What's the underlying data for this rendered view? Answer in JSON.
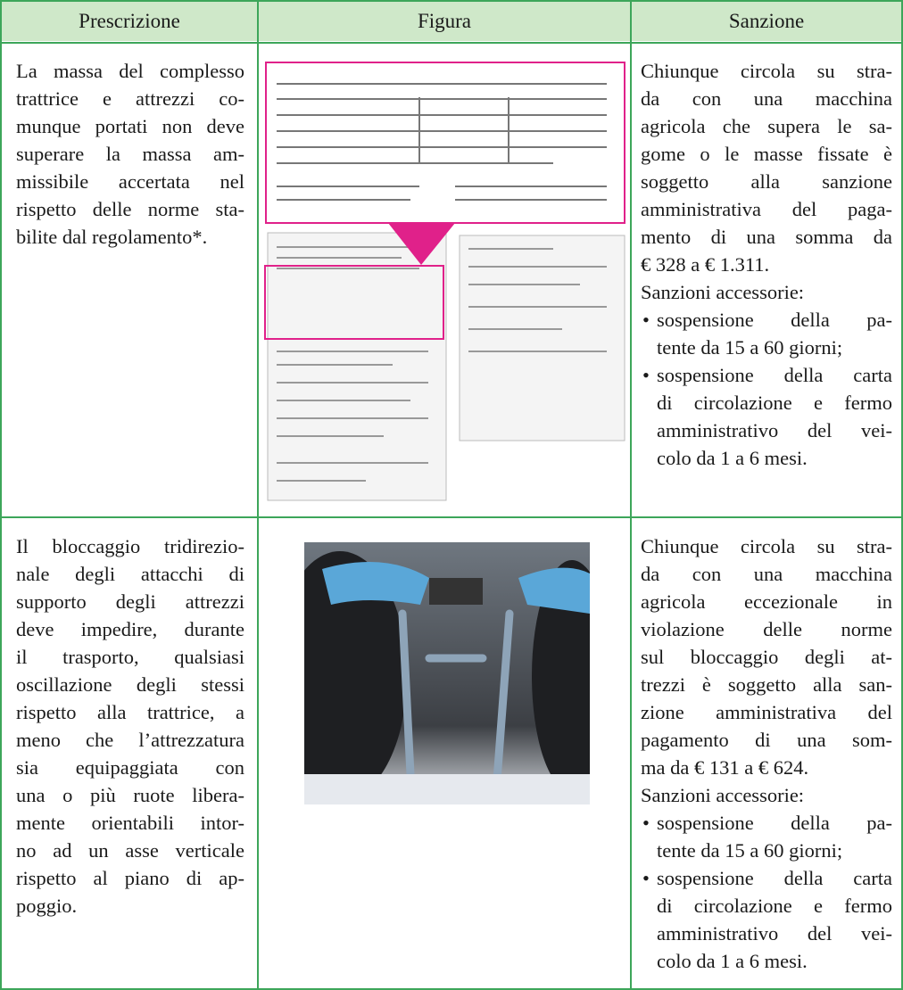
{
  "table": {
    "headers": [
      "Prescrizione",
      "Figura",
      "Sanzione"
    ],
    "rows": [
      {
        "prescrizione": [
          "La massa del complesso",
          "trattrice e attrezzi co-",
          "munque portati non deve",
          "superare la massa am-",
          "missibile accertata nel",
          "rispetto delle norme sta-",
          "bilite dal regolamento*."
        ],
        "sanzione": {
          "lines": [
            "Chiunque circola su stra-",
            "da con una macchina",
            "agricola che supera le sa-",
            "gome o le masse fissate è",
            "soggetto alla sanzione",
            "amministrativa del paga-",
            "mento di una somma da",
            "€ 328 a € 1.311."
          ],
          "accessorie": "Sanzioni accessorie:",
          "items": [
            [
              "sospensione della pa-",
              "tente da 15 a 60 giorni;"
            ],
            [
              "sospensione della carta",
              "di circolazione e fermo",
              "amministrativo del vei-",
              "colo da 1 a 6 mesi."
            ]
          ]
        }
      },
      {
        "prescrizione": [
          "Il bloccaggio tridirezio-",
          "nale degli attacchi di",
          "supporto degli attrezzi",
          "deve impedire, durante",
          "il trasporto, qualsiasi",
          "oscillazione degli stessi",
          "rispetto alla trattrice, a",
          "meno che l’attrezzatura",
          "sia equipaggiata con",
          "una o più ruote libera-",
          "mente orientabili intor-",
          "no ad un asse verticale",
          "rispetto al piano di ap-",
          "poggio."
        ],
        "sanzione": {
          "lines": [
            "Chiunque circola su stra-",
            "da con una macchina",
            "agricola eccezionale in",
            "violazione delle norme",
            "sul bloccaggio degli at-",
            "trezzi è soggetto alla san-",
            "zione amministrativa del",
            "pagamento di una som-",
            "ma da € 131 a € 624."
          ],
          "accessorie": "Sanzioni accessorie:",
          "items": [
            [
              "sospensione della pa-",
              "tente da 15 a 60 giorni;"
            ],
            [
              "sospensione della carta",
              "di circolazione e fermo",
              "amministrativo del vei-",
              "colo da 1 a 6 mesi."
            ]
          ]
        }
      }
    ]
  }
}
